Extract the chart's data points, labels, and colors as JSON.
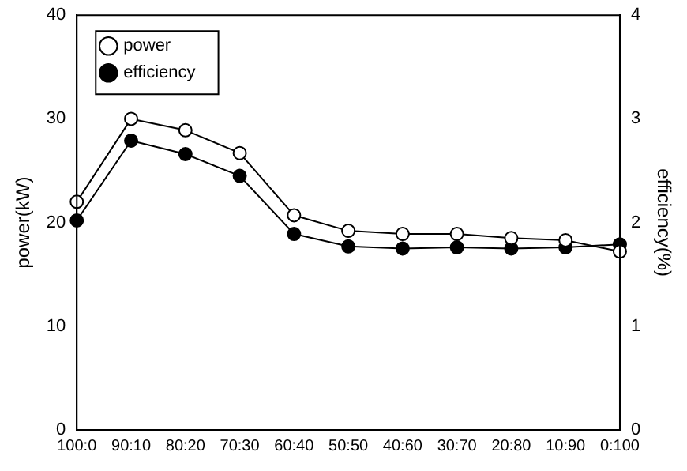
{
  "chart_data": {
    "type": "line",
    "xlabel": null,
    "ylabel": "power(kW)",
    "y2label": "efficiency(%)",
    "categories": [
      "100:0",
      "90:10",
      "80:20",
      "70:30",
      "60:40",
      "50:50",
      "40:60",
      "30:70",
      "20:80",
      "10:90",
      "0:100"
    ],
    "series": [
      {
        "name": "power",
        "color": "#000000",
        "marker": "circle",
        "values": [
          22.0,
          30.0,
          28.9,
          26.7,
          20.7,
          19.2,
          18.9,
          18.9,
          18.5,
          18.3,
          17.2
        ]
      },
      {
        "name": "efficiency",
        "color": "#000000",
        "marker": "circle",
        "axis": "y2",
        "values": [
          2.02,
          2.79,
          2.66,
          2.45,
          1.89,
          1.77,
          1.75,
          1.76,
          1.75,
          1.76,
          1.79
        ]
      }
    ],
    "ylim": [
      0,
      40
    ],
    "yticks": [
      0,
      10,
      20,
      30,
      40
    ],
    "y2lim": [
      0,
      4
    ],
    "y2ticks": [
      0,
      1,
      2,
      3,
      4
    ],
    "grid": false,
    "legend": "top left",
    "line_style": "solid"
  }
}
